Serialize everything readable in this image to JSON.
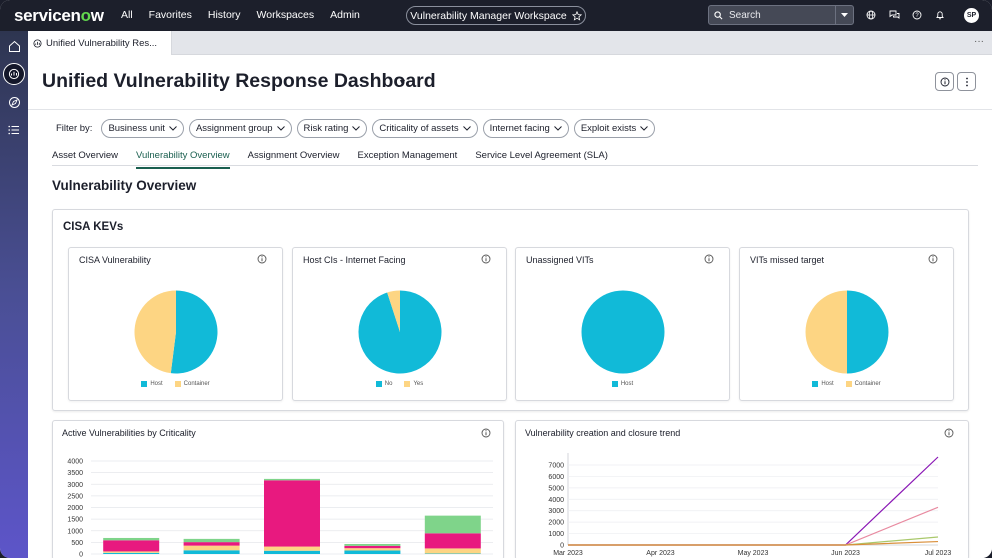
{
  "topnav": {
    "logo_prefix": "servicen",
    "logo_o": "o",
    "logo_suffix": "w",
    "links": [
      "All",
      "Favorites",
      "History",
      "Workspaces",
      "Admin"
    ],
    "workspace": "Vulnerability Manager Workspace",
    "search_placeholder": "Search",
    "avatar": "SP"
  },
  "tab": {
    "label": "Unified Vulnerability Res..."
  },
  "page": {
    "title": "Unified Vulnerability Response Dashboard",
    "filter_label": "Filter by:",
    "filters": [
      "Business unit",
      "Assignment group",
      "Risk rating",
      "Criticality of assets",
      "Internet facing",
      "Exploit exists"
    ],
    "subtabs": [
      "Asset Overview",
      "Vulnerability Overview",
      "Assignment Overview",
      "Exception Management",
      "Service Level Agreement (SLA)"
    ],
    "active_subtab": "Vulnerability Overview",
    "section_title": "Vulnerability Overview"
  },
  "kev": {
    "title": "CISA KEVs",
    "cards": [
      {
        "title": "CISA Vulnerability",
        "slices": [
          {
            "label": "Host",
            "value": 52,
            "color": "#11bad8"
          },
          {
            "label": "Container",
            "value": 48,
            "color": "#fdd583"
          }
        ]
      },
      {
        "title": "Host CIs - Internet Facing",
        "slices": [
          {
            "label": "No",
            "value": 95,
            "color": "#11bad8"
          },
          {
            "label": "Yes",
            "value": 5,
            "color": "#fdd583"
          }
        ]
      },
      {
        "title": "Unassigned VITs",
        "slices": [
          {
            "label": "Host",
            "value": 100,
            "color": "#11bad8"
          }
        ]
      },
      {
        "title": "VITs missed target",
        "slices": [
          {
            "label": "Host",
            "value": 50,
            "color": "#11bad8"
          },
          {
            "label": "Container",
            "value": 50,
            "color": "#fdd583"
          }
        ]
      }
    ]
  },
  "chart_data": [
    {
      "type": "bar",
      "title": "Active Vulnerabilities by Criticality",
      "ylim": [
        0,
        4000
      ],
      "yticks": [
        0,
        500,
        1000,
        1500,
        2000,
        2500,
        3000,
        3500,
        4000
      ],
      "stack_colors": [
        "#11bad8",
        "#fdd583",
        "#e8197f",
        "#7fd48a"
      ],
      "stacks": [
        [
          50,
          160,
          140,
          150,
          20
        ],
        [
          60,
          200,
          180,
          100,
          220
        ],
        [
          480,
          150,
          2850,
          100,
          650
        ],
        [
          100,
          140,
          60,
          80,
          760
        ]
      ]
    },
    {
      "type": "line",
      "title": "Vulnerability creation and closure trend",
      "x": [
        "Mar 2023",
        "Apr 2023",
        "May 2023",
        "Jun 2023",
        "Jul 2023"
      ],
      "ylim": [
        0,
        7000
      ],
      "yticks": [
        0,
        1000,
        2000,
        3000,
        4000,
        5000,
        6000,
        7000
      ],
      "series": [
        {
          "color": "#8a17b5",
          "values": [
            0,
            0,
            0,
            0,
            7700
          ]
        },
        {
          "color": "#e88aa0",
          "values": [
            0,
            0,
            0,
            0,
            3300
          ]
        },
        {
          "color": "#a9c86b",
          "values": [
            0,
            0,
            0,
            0,
            700
          ]
        },
        {
          "color": "#d98f3a",
          "values": [
            0,
            0,
            0,
            0,
            300
          ]
        }
      ]
    }
  ]
}
